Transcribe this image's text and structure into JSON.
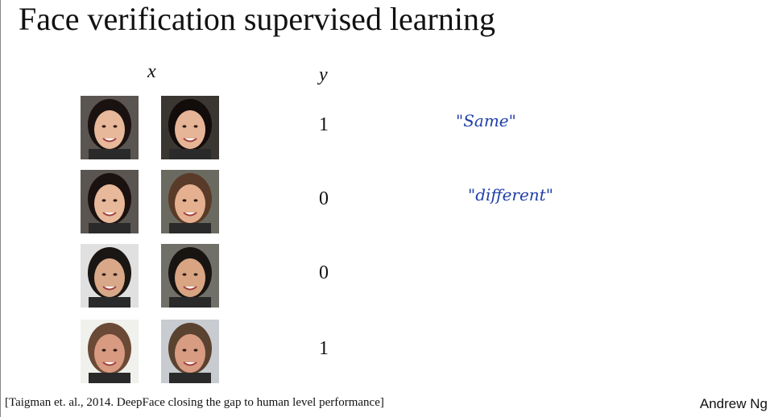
{
  "header": {
    "title": "Face verification supervised learning"
  },
  "columns": {
    "x": "x",
    "y": "y"
  },
  "rows": [
    {
      "y": 1
    },
    {
      "y": 0
    },
    {
      "y": 0
    },
    {
      "y": 1
    }
  ],
  "annotations": [
    "\"Same\"",
    "\"different\""
  ],
  "footer": {
    "citation": "[Taigman et. al., 2014. DeepFace closing the gap to human level performance]",
    "author": "Andrew Ng"
  }
}
